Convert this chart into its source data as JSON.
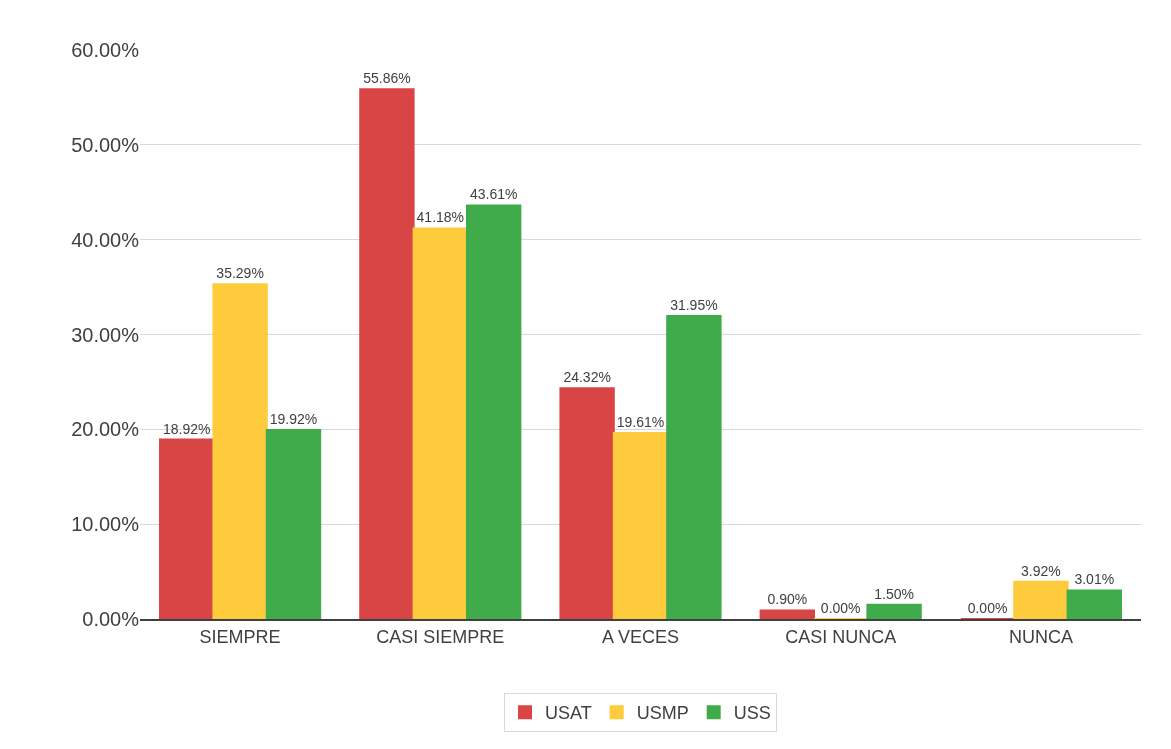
{
  "chart_data": {
    "type": "bar",
    "categories": [
      "SIEMPRE",
      "CASI SIEMPRE",
      "A VECES",
      "CASI NUNCA",
      "NUNCA"
    ],
    "series": [
      {
        "name": "USAT",
        "color": "#d94545",
        "values": [
          18.92,
          55.86,
          24.32,
          0.9,
          0
        ],
        "value_labels": [
          "18.92%",
          "55.86%",
          "24.32%",
          "0.90%",
          "0.00%"
        ]
      },
      {
        "name": "USMP",
        "color": "#fdcb3c",
        "values": [
          35.29,
          41.18,
          19.61,
          0,
          3.92
        ],
        "value_labels": [
          "35.29%",
          "41.18%",
          "19.61%",
          "0.00%",
          "3.92%"
        ]
      },
      {
        "name": "USS",
        "color": "#3fab4a",
        "values": [
          19.92,
          43.61,
          31.95,
          1.5,
          3.01
        ],
        "value_labels": [
          "19.92%",
          "43.61%",
          "31.95%",
          "1.50%",
          "3.01%"
        ]
      }
    ],
    "ylim": [
      0,
      60
    ],
    "yticks": [
      {
        "value": 0,
        "label": "0.00%"
      },
      {
        "value": 10,
        "label": "10.00%"
      },
      {
        "value": 20,
        "label": "20.00%"
      },
      {
        "value": 30,
        "label": "30.00%"
      },
      {
        "value": 40,
        "label": "40.00%"
      },
      {
        "value": 50,
        "label": "50.00%"
      },
      {
        "value": 60,
        "label": "60.00%"
      }
    ],
    "grid": "y",
    "legend": "bottom"
  }
}
